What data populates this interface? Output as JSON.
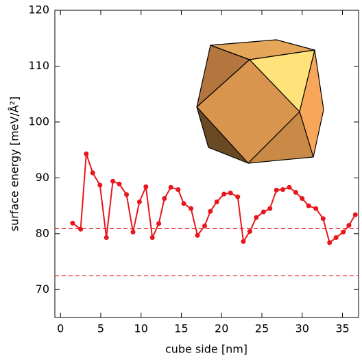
{
  "chart_data": {
    "type": "line",
    "x_label": "cube side [nm]",
    "y_label": "surface energy [meV/Å²]",
    "xlim": [
      -0.7,
      37
    ],
    "xticks": [
      0,
      5,
      10,
      15,
      20,
      25,
      30,
      35
    ],
    "ylim": [
      65,
      120
    ],
    "yticks": [
      70,
      80,
      90,
      100,
      110,
      120
    ],
    "reference_lines": [
      80.9,
      72.5
    ],
    "reference_color": "#e8161b",
    "series": [
      {
        "color": "#e8161b",
        "x": [
          1.5,
          2.5,
          3.2,
          4.0,
          4.9,
          5.7,
          6.5,
          7.3,
          8.2,
          9.0,
          9.8,
          10.6,
          11.4,
          12.2,
          12.9,
          13.7,
          14.6,
          15.3,
          16.2,
          17.0,
          17.9,
          18.6,
          19.4,
          20.3,
          21.1,
          22.0,
          22.7,
          23.5,
          24.3,
          25.2,
          26.0,
          26.8,
          27.6,
          28.4,
          29.2,
          30.0,
          30.8,
          31.7,
          32.6,
          33.4,
          34.2,
          35.1,
          35.8,
          36.6
        ],
        "values": [
          81.9,
          80.8,
          94.3,
          90.9,
          88.7,
          79.3,
          89.4,
          88.9,
          87.0,
          80.3,
          85.7,
          88.4,
          79.3,
          81.8,
          86.3,
          88.3,
          87.9,
          85.4,
          84.5,
          79.7,
          81.4,
          84.0,
          85.7,
          87.1,
          87.3,
          86.6,
          78.6,
          80.4,
          82.9,
          83.9,
          84.5,
          87.8,
          87.9,
          88.3,
          87.4,
          86.3,
          85.0,
          84.5,
          82.7,
          78.4,
          79.3,
          80.3,
          81.5,
          83.4
        ]
      }
    ]
  }
}
